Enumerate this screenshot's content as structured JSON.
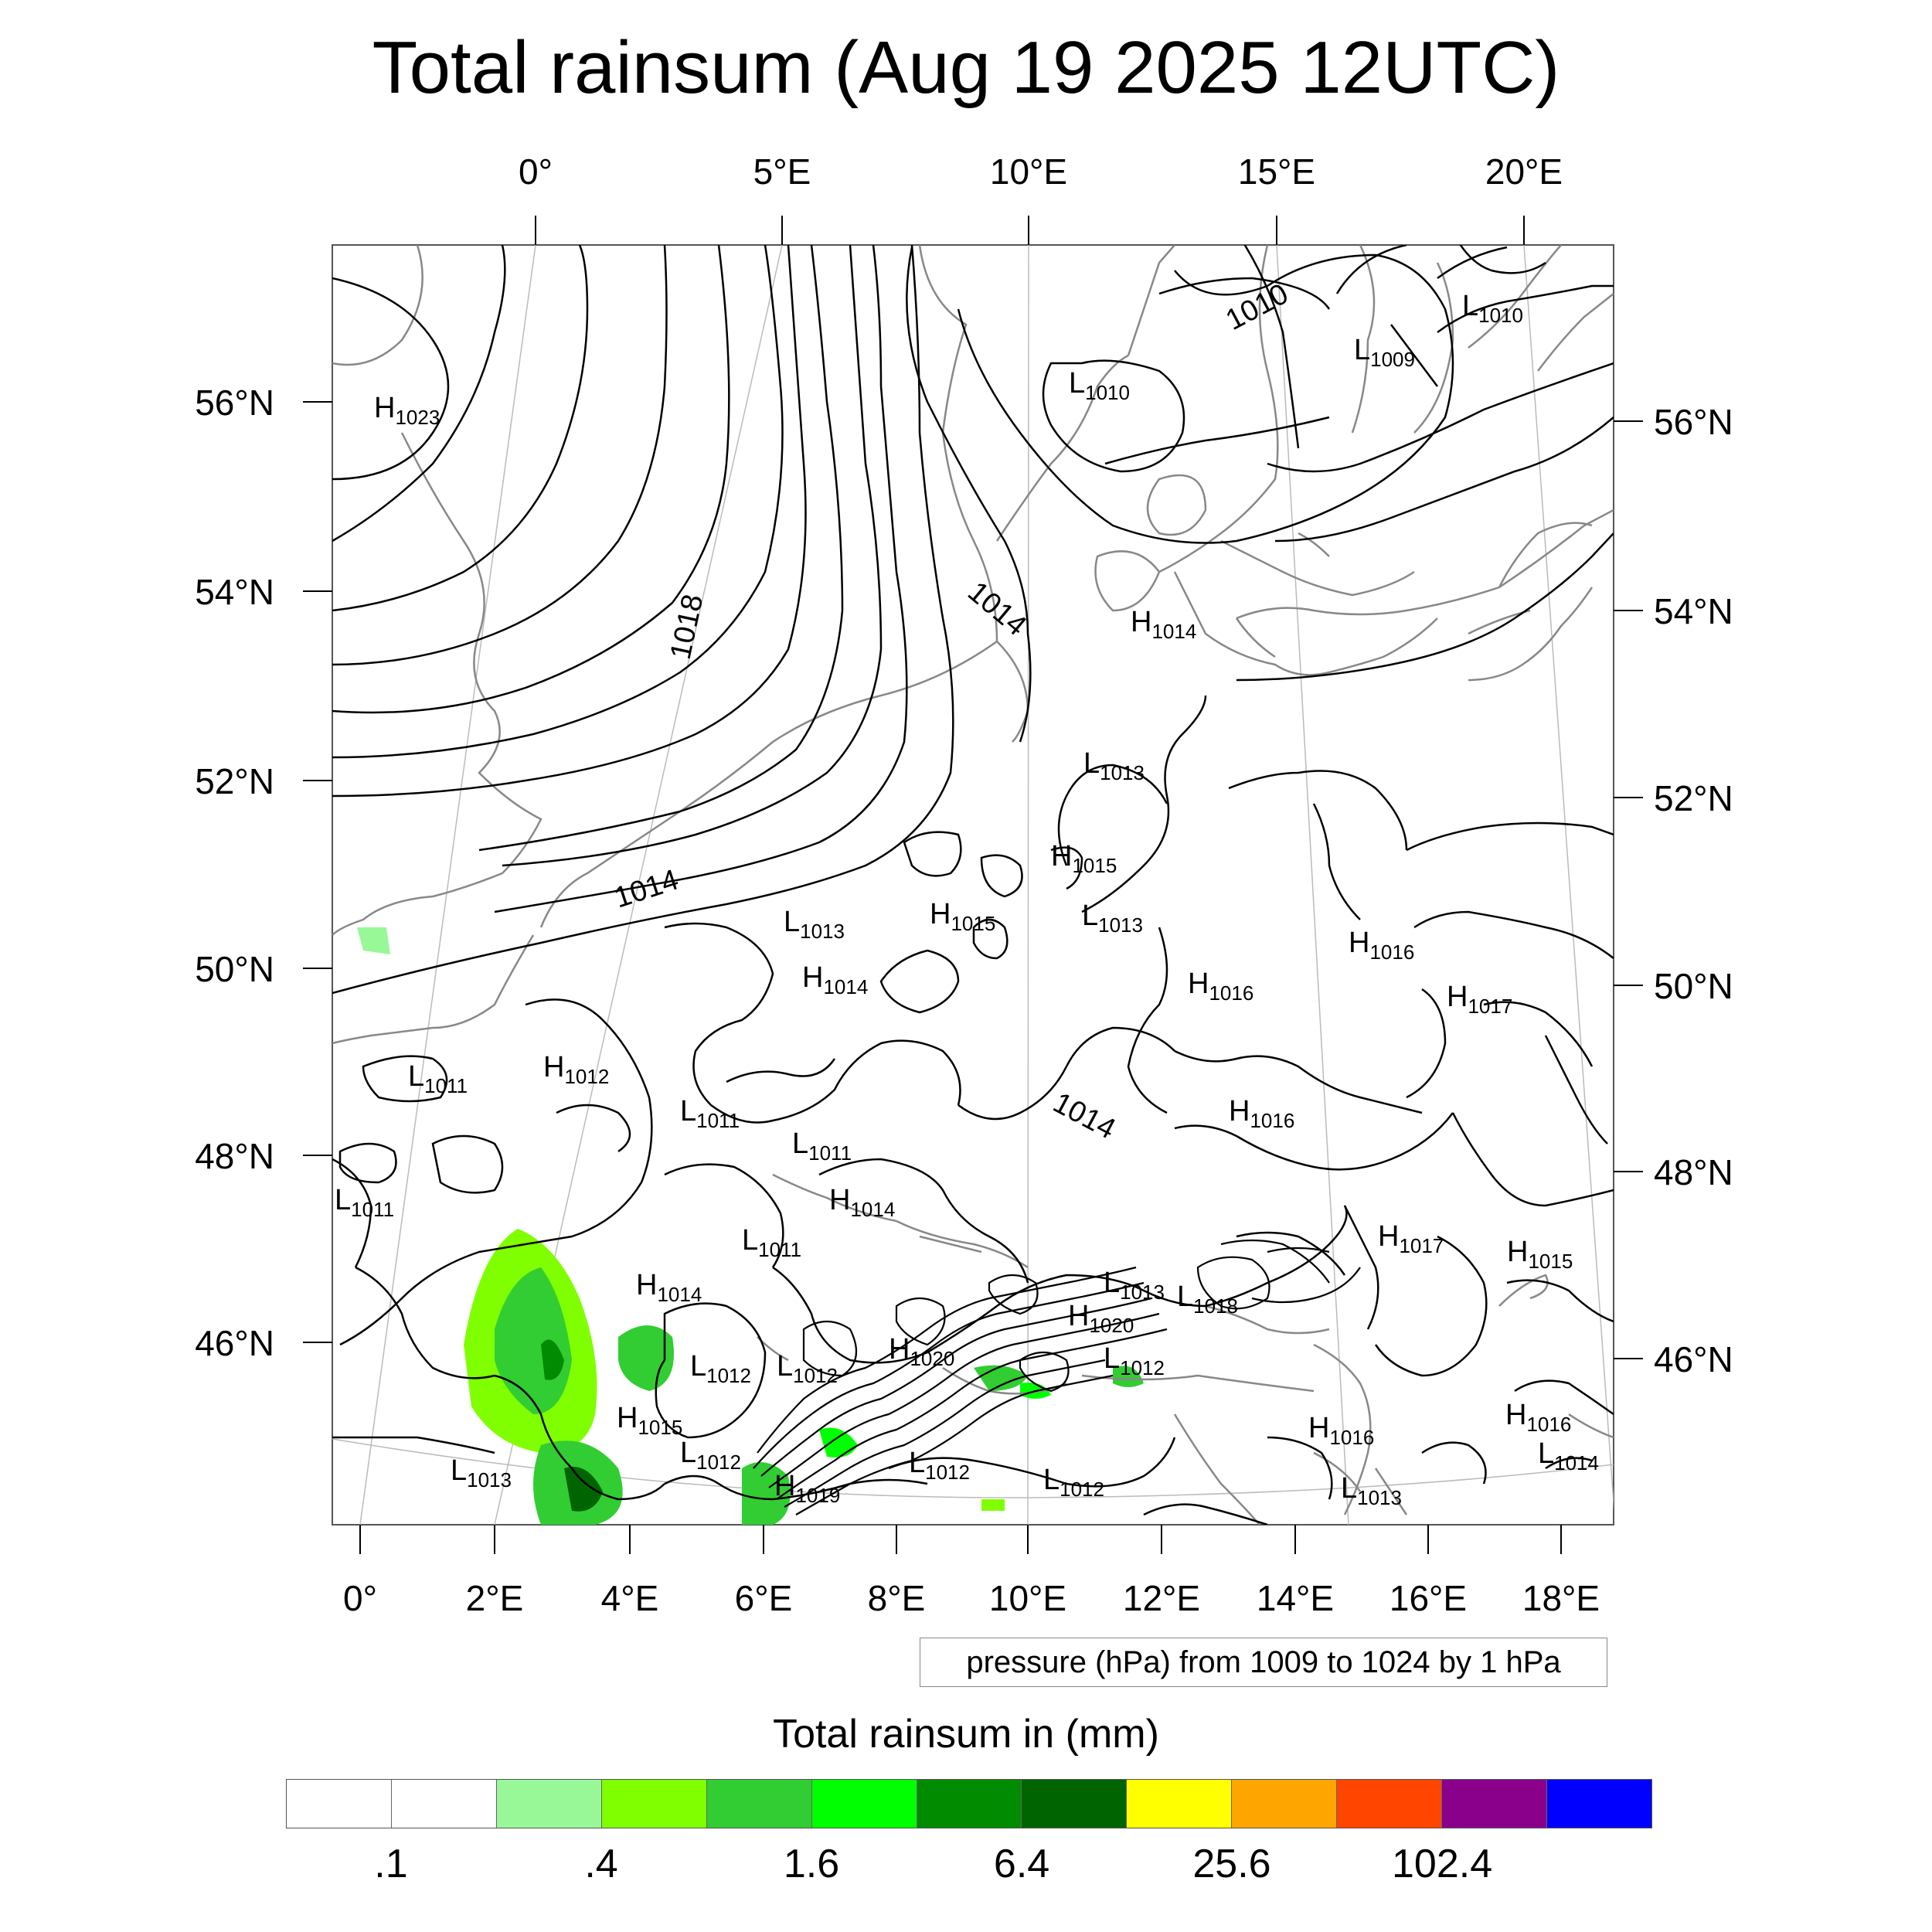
{
  "title": "Total rainsum (Aug 19 2025 12UTC)",
  "map": {
    "top_lon_ticks": [
      "0°",
      "5°E",
      "10°E",
      "15°E",
      "20°E"
    ],
    "bottom_lon_ticks": [
      "0°",
      "2°E",
      "4°E",
      "6°E",
      "8°E",
      "10°E",
      "12°E",
      "14°E",
      "16°E",
      "18°E"
    ],
    "left_lat_ticks": [
      "56°N",
      "54°N",
      "52°N",
      "50°N",
      "48°N",
      "46°N"
    ],
    "right_lat_ticks": [
      "56°N",
      "54°N",
      "52°N",
      "50°N",
      "48°N",
      "46°N"
    ],
    "contour_labels": [
      "1010",
      "1014",
      "1018",
      "1014",
      "1014"
    ],
    "pressure_centers": [
      {
        "type": "H",
        "value": "1023"
      },
      {
        "type": "L",
        "value": "1010"
      },
      {
        "type": "L",
        "value": "1009"
      },
      {
        "type": "L",
        "value": "1010"
      },
      {
        "type": "H",
        "value": "1014"
      },
      {
        "type": "L",
        "value": "1013"
      },
      {
        "type": "H",
        "value": "1015"
      },
      {
        "type": "L",
        "value": "1013"
      },
      {
        "type": "H",
        "value": "1015"
      },
      {
        "type": "L",
        "value": "1013"
      },
      {
        "type": "H",
        "value": "1014"
      },
      {
        "type": "H",
        "value": "1016"
      },
      {
        "type": "H",
        "value": "1016"
      },
      {
        "type": "H",
        "value": "1017"
      },
      {
        "type": "L",
        "value": "1011"
      },
      {
        "type": "H",
        "value": "1012"
      },
      {
        "type": "L",
        "value": "1011"
      },
      {
        "type": "L",
        "value": "1011"
      },
      {
        "type": "H",
        "value": "1016"
      },
      {
        "type": "L",
        "value": "1011"
      },
      {
        "type": "H",
        "value": "1014"
      },
      {
        "type": "L",
        "value": "1011"
      },
      {
        "type": "H",
        "value": "1014"
      },
      {
        "type": "L",
        "value": "1013"
      },
      {
        "type": "L",
        "value": "1018"
      },
      {
        "type": "H",
        "value": "1017"
      },
      {
        "type": "H",
        "value": "1015"
      },
      {
        "type": "H",
        "value": "1020"
      },
      {
        "type": "H",
        "value": "1020"
      },
      {
        "type": "L",
        "value": "1012"
      },
      {
        "type": "L",
        "value": "1012"
      },
      {
        "type": "L",
        "value": "1012"
      },
      {
        "type": "H",
        "value": "1015"
      },
      {
        "type": "L",
        "value": "1012"
      },
      {
        "type": "L",
        "value": "1013"
      },
      {
        "type": "H",
        "value": "1019"
      },
      {
        "type": "L",
        "value": "1012"
      },
      {
        "type": "L",
        "value": "1012"
      },
      {
        "type": "H",
        "value": "1016"
      },
      {
        "type": "H",
        "value": "1016"
      },
      {
        "type": "L",
        "value": "1014"
      },
      {
        "type": "L",
        "value": "1013"
      }
    ]
  },
  "info_box": "pressure (hPa) from 1009 to 1024 by 1 hPa",
  "colorbar": {
    "title": "Total rainsum in (mm)",
    "colors": [
      "#ffffff",
      "#ffffff",
      "#98f898",
      "#80ff00",
      "#32cd32",
      "#00ff00",
      "#008b00",
      "#006400",
      "#ffff00",
      "#ffa500",
      "#ff4500",
      "#8b008b",
      "#0000ff"
    ],
    "labels": [
      ".1",
      ".4",
      "1.6",
      "6.4",
      "25.6",
      "102.4"
    ]
  }
}
